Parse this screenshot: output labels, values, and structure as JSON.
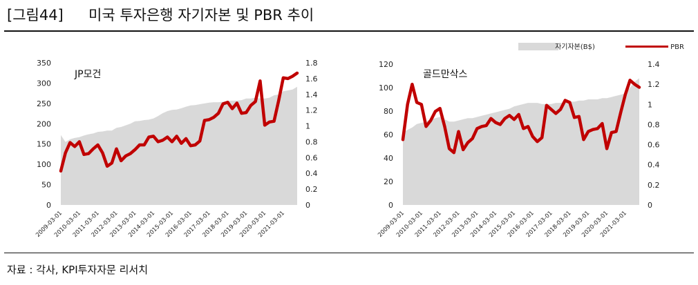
{
  "figure": {
    "label": "[그림44]",
    "title": "미국 투자은행 자기자본 및 PBR 추이",
    "source": "자료 : 각사, KPI투자자문 리서치"
  },
  "legend": {
    "area_label": "자기자본(B$)",
    "line_label": "PBR"
  },
  "colors": {
    "area": "#d9d9d9",
    "line": "#c00000"
  },
  "chart_data": [
    {
      "type": "area+line",
      "panel_label": "JP모건",
      "x_ticks": [
        "2009-03-01",
        "2010-03-01",
        "2011-03-01",
        "2012-03-01",
        "2013-03-01",
        "2014-03-01",
        "2015-03-01",
        "2016-03-01",
        "2017-03-01",
        "2018-03-01",
        "2019-03-01",
        "2020-03-01",
        "2021-03-01"
      ],
      "y_left_ticks": [
        "0",
        "50",
        "100",
        "150",
        "200",
        "250",
        "300",
        "350"
      ],
      "y_right_ticks": [
        "0",
        "0.2",
        "0.4",
        "0.6",
        "0.8",
        "1",
        "1.2",
        "1.4",
        "1.6",
        "1.8"
      ],
      "ylim_left": [
        0,
        350
      ],
      "ylim_right": [
        0,
        1.8
      ],
      "x_range": [
        2009.0,
        2021.75
      ],
      "series": [
        {
          "name": "자기자본(B$)",
          "axis": "left",
          "x": [
            2009.0,
            2009.25,
            2009.5,
            2009.75,
            2010.0,
            2010.25,
            2010.5,
            2010.75,
            2011.0,
            2011.25,
            2011.5,
            2011.75,
            2012.0,
            2012.25,
            2012.5,
            2012.75,
            2013.0,
            2013.25,
            2013.5,
            2013.75,
            2014.0,
            2014.25,
            2014.5,
            2014.75,
            2015.0,
            2015.25,
            2015.5,
            2015.75,
            2016.0,
            2016.25,
            2016.5,
            2016.75,
            2017.0,
            2017.25,
            2017.5,
            2017.75,
            2018.0,
            2018.25,
            2018.5,
            2018.75,
            2019.0,
            2019.25,
            2019.5,
            2019.75,
            2020.0,
            2020.25,
            2020.5,
            2020.75,
            2021.0,
            2021.25,
            2021.5,
            2021.75
          ],
          "values": [
            172,
            155,
            162,
            165,
            167,
            171,
            174,
            176,
            180,
            181,
            183,
            183,
            190,
            192,
            196,
            200,
            206,
            207,
            209,
            210,
            213,
            219,
            226,
            231,
            234,
            235,
            238,
            242,
            245,
            246,
            248,
            250,
            252,
            253,
            253,
            254,
            256,
            257,
            257,
            258,
            262,
            262,
            264,
            262,
            262,
            264,
            270,
            272,
            280,
            282,
            284,
            291
          ]
        },
        {
          "name": "PBR",
          "axis": "right",
          "x": [
            2009.0,
            2009.25,
            2009.5,
            2009.75,
            2010.0,
            2010.25,
            2010.5,
            2010.75,
            2011.0,
            2011.25,
            2011.5,
            2011.75,
            2012.0,
            2012.25,
            2012.5,
            2012.75,
            2013.0,
            2013.25,
            2013.5,
            2013.75,
            2014.0,
            2014.25,
            2014.5,
            2014.75,
            2015.0,
            2015.25,
            2015.5,
            2015.75,
            2016.0,
            2016.25,
            2016.5,
            2016.75,
            2017.0,
            2017.25,
            2017.5,
            2017.75,
            2018.0,
            2018.25,
            2018.5,
            2018.75,
            2019.0,
            2019.25,
            2019.5,
            2019.75,
            2020.0,
            2020.25,
            2020.5,
            2020.75,
            2021.0,
            2021.25,
            2021.5,
            2021.75
          ],
          "values": [
            0.43,
            0.66,
            0.79,
            0.74,
            0.8,
            0.64,
            0.65,
            0.71,
            0.76,
            0.66,
            0.49,
            0.53,
            0.71,
            0.56,
            0.62,
            0.65,
            0.7,
            0.76,
            0.76,
            0.86,
            0.87,
            0.8,
            0.82,
            0.86,
            0.8,
            0.87,
            0.78,
            0.84,
            0.75,
            0.76,
            0.81,
            1.07,
            1.08,
            1.11,
            1.16,
            1.28,
            1.3,
            1.22,
            1.29,
            1.16,
            1.17,
            1.26,
            1.31,
            1.57,
            1.01,
            1.05,
            1.06,
            1.32,
            1.61,
            1.6,
            1.63,
            1.67
          ]
        }
      ]
    },
    {
      "type": "area+line",
      "panel_label": "골드만삭스",
      "x_ticks": [
        "2009-03-01",
        "2010-03-01",
        "2011-03-01",
        "2012-03-01",
        "2013-03-01",
        "2014-03-01",
        "2015-03-01",
        "2016-03-01",
        "2017-03-01",
        "2018-03-01",
        "2019-03-01",
        "2020-03-01",
        "2021-03-01"
      ],
      "y_left_ticks": [
        "0",
        "20",
        "40",
        "60",
        "80",
        "100",
        "120"
      ],
      "y_right_ticks": [
        "0",
        "0.2",
        "0.4",
        "0.6",
        "0.8",
        "1",
        "1.2",
        "1.4"
      ],
      "ylim_left": [
        0,
        120
      ],
      "ylim_right": [
        0,
        1.4
      ],
      "x_range": [
        2009.0,
        2021.75
      ],
      "series": [
        {
          "name": "자기자본(B$)",
          "axis": "left",
          "x": [
            2009.0,
            2009.25,
            2009.5,
            2009.75,
            2010.0,
            2010.25,
            2010.5,
            2010.75,
            2011.0,
            2011.25,
            2011.5,
            2011.75,
            2012.0,
            2012.25,
            2012.5,
            2012.75,
            2013.0,
            2013.25,
            2013.5,
            2013.75,
            2014.0,
            2014.25,
            2014.5,
            2014.75,
            2015.0,
            2015.25,
            2015.5,
            2015.75,
            2016.0,
            2016.25,
            2016.5,
            2016.75,
            2017.0,
            2017.25,
            2017.5,
            2017.75,
            2018.0,
            2018.25,
            2018.5,
            2018.75,
            2019.0,
            2019.25,
            2019.5,
            2019.75,
            2020.0,
            2020.25,
            2020.5,
            2020.75,
            2021.0,
            2021.25,
            2021.5,
            2021.75
          ],
          "values": [
            62,
            64,
            66,
            69,
            70,
            71,
            73,
            74,
            75,
            73,
            71,
            71,
            72,
            73,
            74,
            74,
            75,
            76,
            77,
            78,
            79,
            80,
            81,
            82,
            84,
            85,
            86,
            87,
            87,
            87,
            86,
            86,
            86,
            87,
            87,
            88,
            88,
            88,
            89,
            89,
            90,
            90,
            90,
            91,
            91,
            92,
            93,
            94,
            95,
            100,
            105,
            108
          ]
        },
        {
          "name": "PBR",
          "axis": "right",
          "x": [
            2009.0,
            2009.25,
            2009.5,
            2009.75,
            2010.0,
            2010.25,
            2010.5,
            2010.75,
            2011.0,
            2011.25,
            2011.5,
            2011.75,
            2012.0,
            2012.25,
            2012.5,
            2012.75,
            2013.0,
            2013.25,
            2013.5,
            2013.75,
            2014.0,
            2014.25,
            2014.5,
            2014.75,
            2015.0,
            2015.25,
            2015.5,
            2015.75,
            2016.0,
            2016.25,
            2016.5,
            2016.75,
            2017.0,
            2017.25,
            2017.5,
            2017.75,
            2018.0,
            2018.25,
            2018.5,
            2018.75,
            2019.0,
            2019.25,
            2019.5,
            2019.75,
            2020.0,
            2020.25,
            2020.5,
            2020.75,
            2021.0,
            2021.25,
            2021.5,
            2021.75
          ],
          "values": [
            0.65,
            1.0,
            1.2,
            1.02,
            1.0,
            0.78,
            0.84,
            0.93,
            0.96,
            0.78,
            0.56,
            0.52,
            0.73,
            0.55,
            0.62,
            0.66,
            0.76,
            0.78,
            0.79,
            0.86,
            0.82,
            0.8,
            0.86,
            0.89,
            0.85,
            0.9,
            0.76,
            0.78,
            0.68,
            0.63,
            0.67,
            0.99,
            0.95,
            0.91,
            0.95,
            1.04,
            1.02,
            0.87,
            0.88,
            0.65,
            0.73,
            0.75,
            0.76,
            0.81,
            0.56,
            0.72,
            0.73,
            0.92,
            1.1,
            1.24,
            1.2,
            1.17
          ]
        }
      ]
    }
  ]
}
